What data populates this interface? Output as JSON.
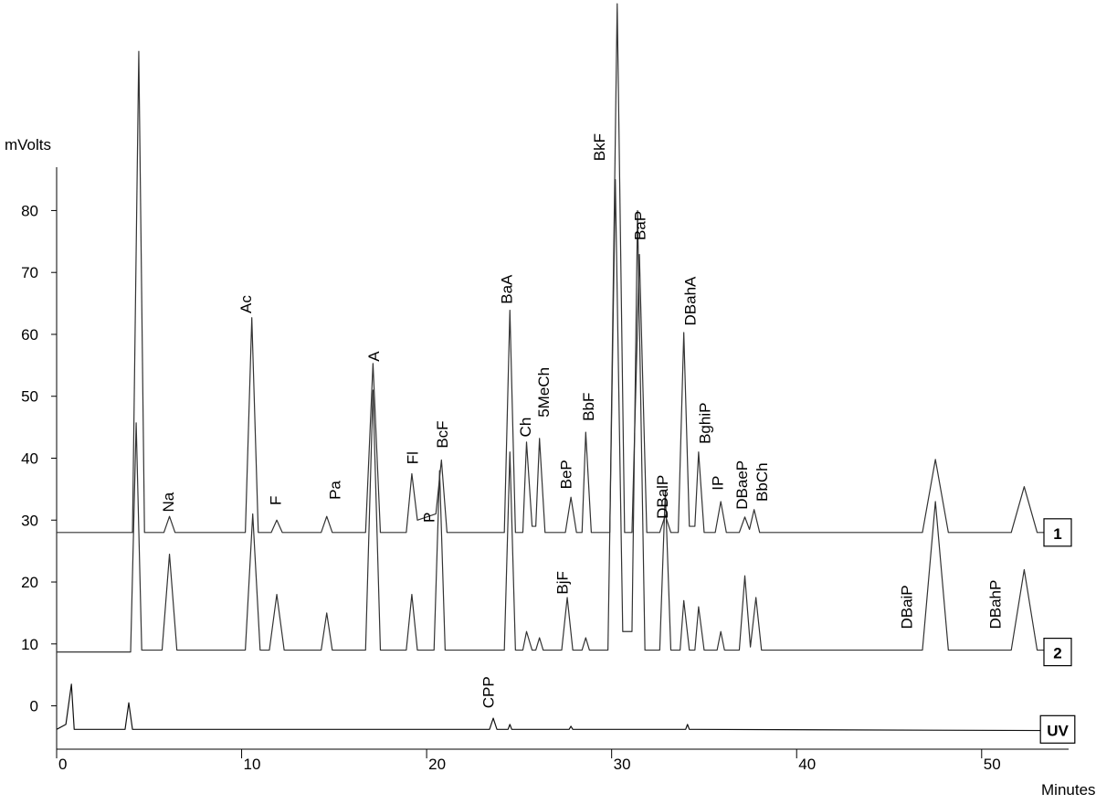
{
  "chart_data": {
    "type": "line",
    "y_label": "mVolts",
    "x_label": "Minutes",
    "xlim": [
      0,
      54.7
    ],
    "ylim": [
      -7,
      87
    ],
    "xticks": [
      0,
      10,
      20,
      30,
      40,
      50
    ],
    "yticks": [
      0,
      10,
      20,
      30,
      40,
      50,
      60,
      70,
      80
    ],
    "grid": false,
    "series": [
      {
        "name": "1",
        "color": "#333333",
        "x": [
          0,
          4.1,
          4.44,
          4.75,
          5.8,
          6.1,
          6.4,
          10.2,
          10.55,
          10.9,
          11.6,
          11.9,
          12.2,
          14.3,
          14.6,
          14.9,
          16.7,
          17.1,
          17.5,
          18.9,
          19.2,
          19.5,
          20.5,
          20.8,
          21.1,
          24.2,
          24.5,
          24.8,
          25.2,
          25.4,
          25.7,
          25.9,
          26.1,
          26.4,
          27.5,
          27.8,
          28.1,
          28.4,
          28.6,
          28.9,
          29.9,
          30.3,
          30.7,
          31.1,
          31.5,
          31.9,
          32.6,
          32.9,
          33.2,
          33.6,
          33.9,
          34.2,
          34.5,
          34.7,
          35,
          35.6,
          35.9,
          36.2,
          36.9,
          37.2,
          37.45,
          37.7,
          38,
          46.8,
          47.5,
          48.2,
          51.6,
          52.3,
          53,
          54.7
        ],
        "values": [
          28,
          28,
          105.7,
          28,
          28,
          30.6,
          28,
          28,
          62.7,
          28,
          28,
          30,
          28,
          28,
          30.6,
          28,
          28,
          55.3,
          28,
          28,
          37.5,
          30,
          31,
          39.7,
          28,
          28,
          63.9,
          28,
          28,
          42.6,
          29,
          29,
          43.2,
          28,
          28,
          33.7,
          28,
          28,
          44.2,
          28,
          28,
          113.4,
          28,
          28,
          72.9,
          28,
          28,
          30.8,
          28,
          28,
          60.3,
          29,
          29,
          41,
          28,
          28,
          33,
          28,
          28,
          30.5,
          28.5,
          31.7,
          28,
          28,
          39.8,
          28,
          28,
          35.4,
          28,
          28
        ]
      },
      {
        "name": "2",
        "color": "#333333",
        "x": [
          0,
          4,
          4.3,
          4.6,
          5.7,
          6.1,
          6.5,
          10.2,
          10.6,
          11,
          11.5,
          11.9,
          12.3,
          14.3,
          14.6,
          14.9,
          16.7,
          17.1,
          17.5,
          18.9,
          19.2,
          19.5,
          20.4,
          20.7,
          21,
          24.2,
          24.5,
          24.8,
          25.2,
          25.4,
          25.7,
          25.9,
          26.1,
          26.3,
          27.3,
          27.6,
          27.9,
          28.4,
          28.6,
          28.8,
          29.8,
          30.2,
          30.6,
          31.1,
          31.4,
          31.8,
          32.6,
          32.9,
          33.2,
          33.7,
          33.9,
          34.2,
          34.5,
          34.7,
          35,
          35.7,
          35.9,
          36.1,
          36.9,
          37.2,
          37.5,
          37.8,
          38.1,
          46.8,
          47.5,
          48.2,
          51.6,
          52.3,
          53,
          54.7
        ],
        "values": [
          8.7,
          8.7,
          45.7,
          9,
          9,
          24.5,
          9,
          9,
          31,
          9,
          9,
          18,
          9,
          9,
          15,
          9,
          9,
          51,
          9,
          9,
          18,
          9,
          9,
          38,
          9,
          9,
          41,
          9,
          9,
          12,
          9,
          9,
          11,
          9,
          9,
          17.5,
          9,
          9,
          11,
          9,
          9,
          85,
          12,
          12,
          80,
          9,
          9,
          34.6,
          9,
          9,
          17,
          9,
          9,
          16,
          9,
          9,
          12,
          9,
          9,
          21,
          9.5,
          17.5,
          9,
          9,
          33,
          9,
          9,
          22,
          9,
          9
        ]
      },
      {
        "name": "UV",
        "color": "#111111",
        "x": [
          0,
          0.5,
          0.8,
          0.95,
          3.7,
          3.9,
          4.1,
          23.4,
          23.6,
          23.8,
          24.4,
          24.5,
          24.6,
          27.7,
          27.8,
          27.9,
          34,
          34.1,
          34.2,
          54.7
        ],
        "values": [
          -3.8,
          -3,
          3.5,
          -3.8,
          -3.8,
          0.5,
          -3.8,
          -3.8,
          -2,
          -3.8,
          -3.8,
          -3,
          -3.8,
          -3.8,
          -3.3,
          -3.8,
          -3.8,
          -3,
          -3.8,
          -4
        ]
      }
    ],
    "annotations": [
      {
        "text": "Na",
        "x": 6.1,
        "y": 31.3,
        "color": "#000000"
      },
      {
        "text": "Ac",
        "x": 10.3,
        "y": 63.4,
        "color": "#000000"
      },
      {
        "text": "F",
        "x": 11.9,
        "y": 32.4,
        "color": "#000000"
      },
      {
        "text": "Pa",
        "x": 15.1,
        "y": 33.3,
        "color": "#000000"
      },
      {
        "text": "A",
        "x": 17.2,
        "y": 55.6,
        "color": "#000000"
      },
      {
        "text": "Fl",
        "x": 19.3,
        "y": 39,
        "color": "#000000"
      },
      {
        "text": "P",
        "x": 20.2,
        "y": 29.6,
        "color": "#000000"
      },
      {
        "text": "BcF",
        "x": 20.9,
        "y": 41.6,
        "color": "#000000"
      },
      {
        "text": "BaA",
        "x": 24.4,
        "y": 64.9,
        "color": "#000000"
      },
      {
        "text": "Ch",
        "x": 25.4,
        "y": 43.4,
        "color": "#000000"
      },
      {
        "text": "5MeCh",
        "x": 26.4,
        "y": 46.6,
        "color": "#000000"
      },
      {
        "text": "BeP",
        "x": 27.6,
        "y": 35,
        "color": "#555555"
      },
      {
        "text": "BbF",
        "x": 28.8,
        "y": 46,
        "color": "#000000"
      },
      {
        "text": "BkF",
        "x": 29.4,
        "y": 88,
        "color": "#000000"
      },
      {
        "text": "BaP",
        "x": 31.6,
        "y": 75.2,
        "color": "#000000"
      },
      {
        "text": "DBalP",
        "x": 32.8,
        "y": 30.2,
        "color": "#000000"
      },
      {
        "text": "DBahA",
        "x": 34.3,
        "y": 61.4,
        "color": "#000000"
      },
      {
        "text": "BghiP",
        "x": 35.1,
        "y": 42.3,
        "color": "#000000"
      },
      {
        "text": "IP",
        "x": 35.8,
        "y": 34.8,
        "color": "#000000"
      },
      {
        "text": "DBaeP",
        "x": 37.1,
        "y": 31.7,
        "color": "#000000"
      },
      {
        "text": "BbCh",
        "x": 38.2,
        "y": 33,
        "color": "#000000"
      },
      {
        "text": "BjF",
        "x": 27.4,
        "y": 18,
        "color": "#555555"
      },
      {
        "text": "DBaiP",
        "x": 46,
        "y": 12.4,
        "color": "#000000"
      },
      {
        "text": "DBahP",
        "x": 50.8,
        "y": 12.4,
        "color": "#000000"
      },
      {
        "text": "CPP",
        "x": 23.4,
        "y": -0.4,
        "color": "#000000"
      }
    ]
  }
}
